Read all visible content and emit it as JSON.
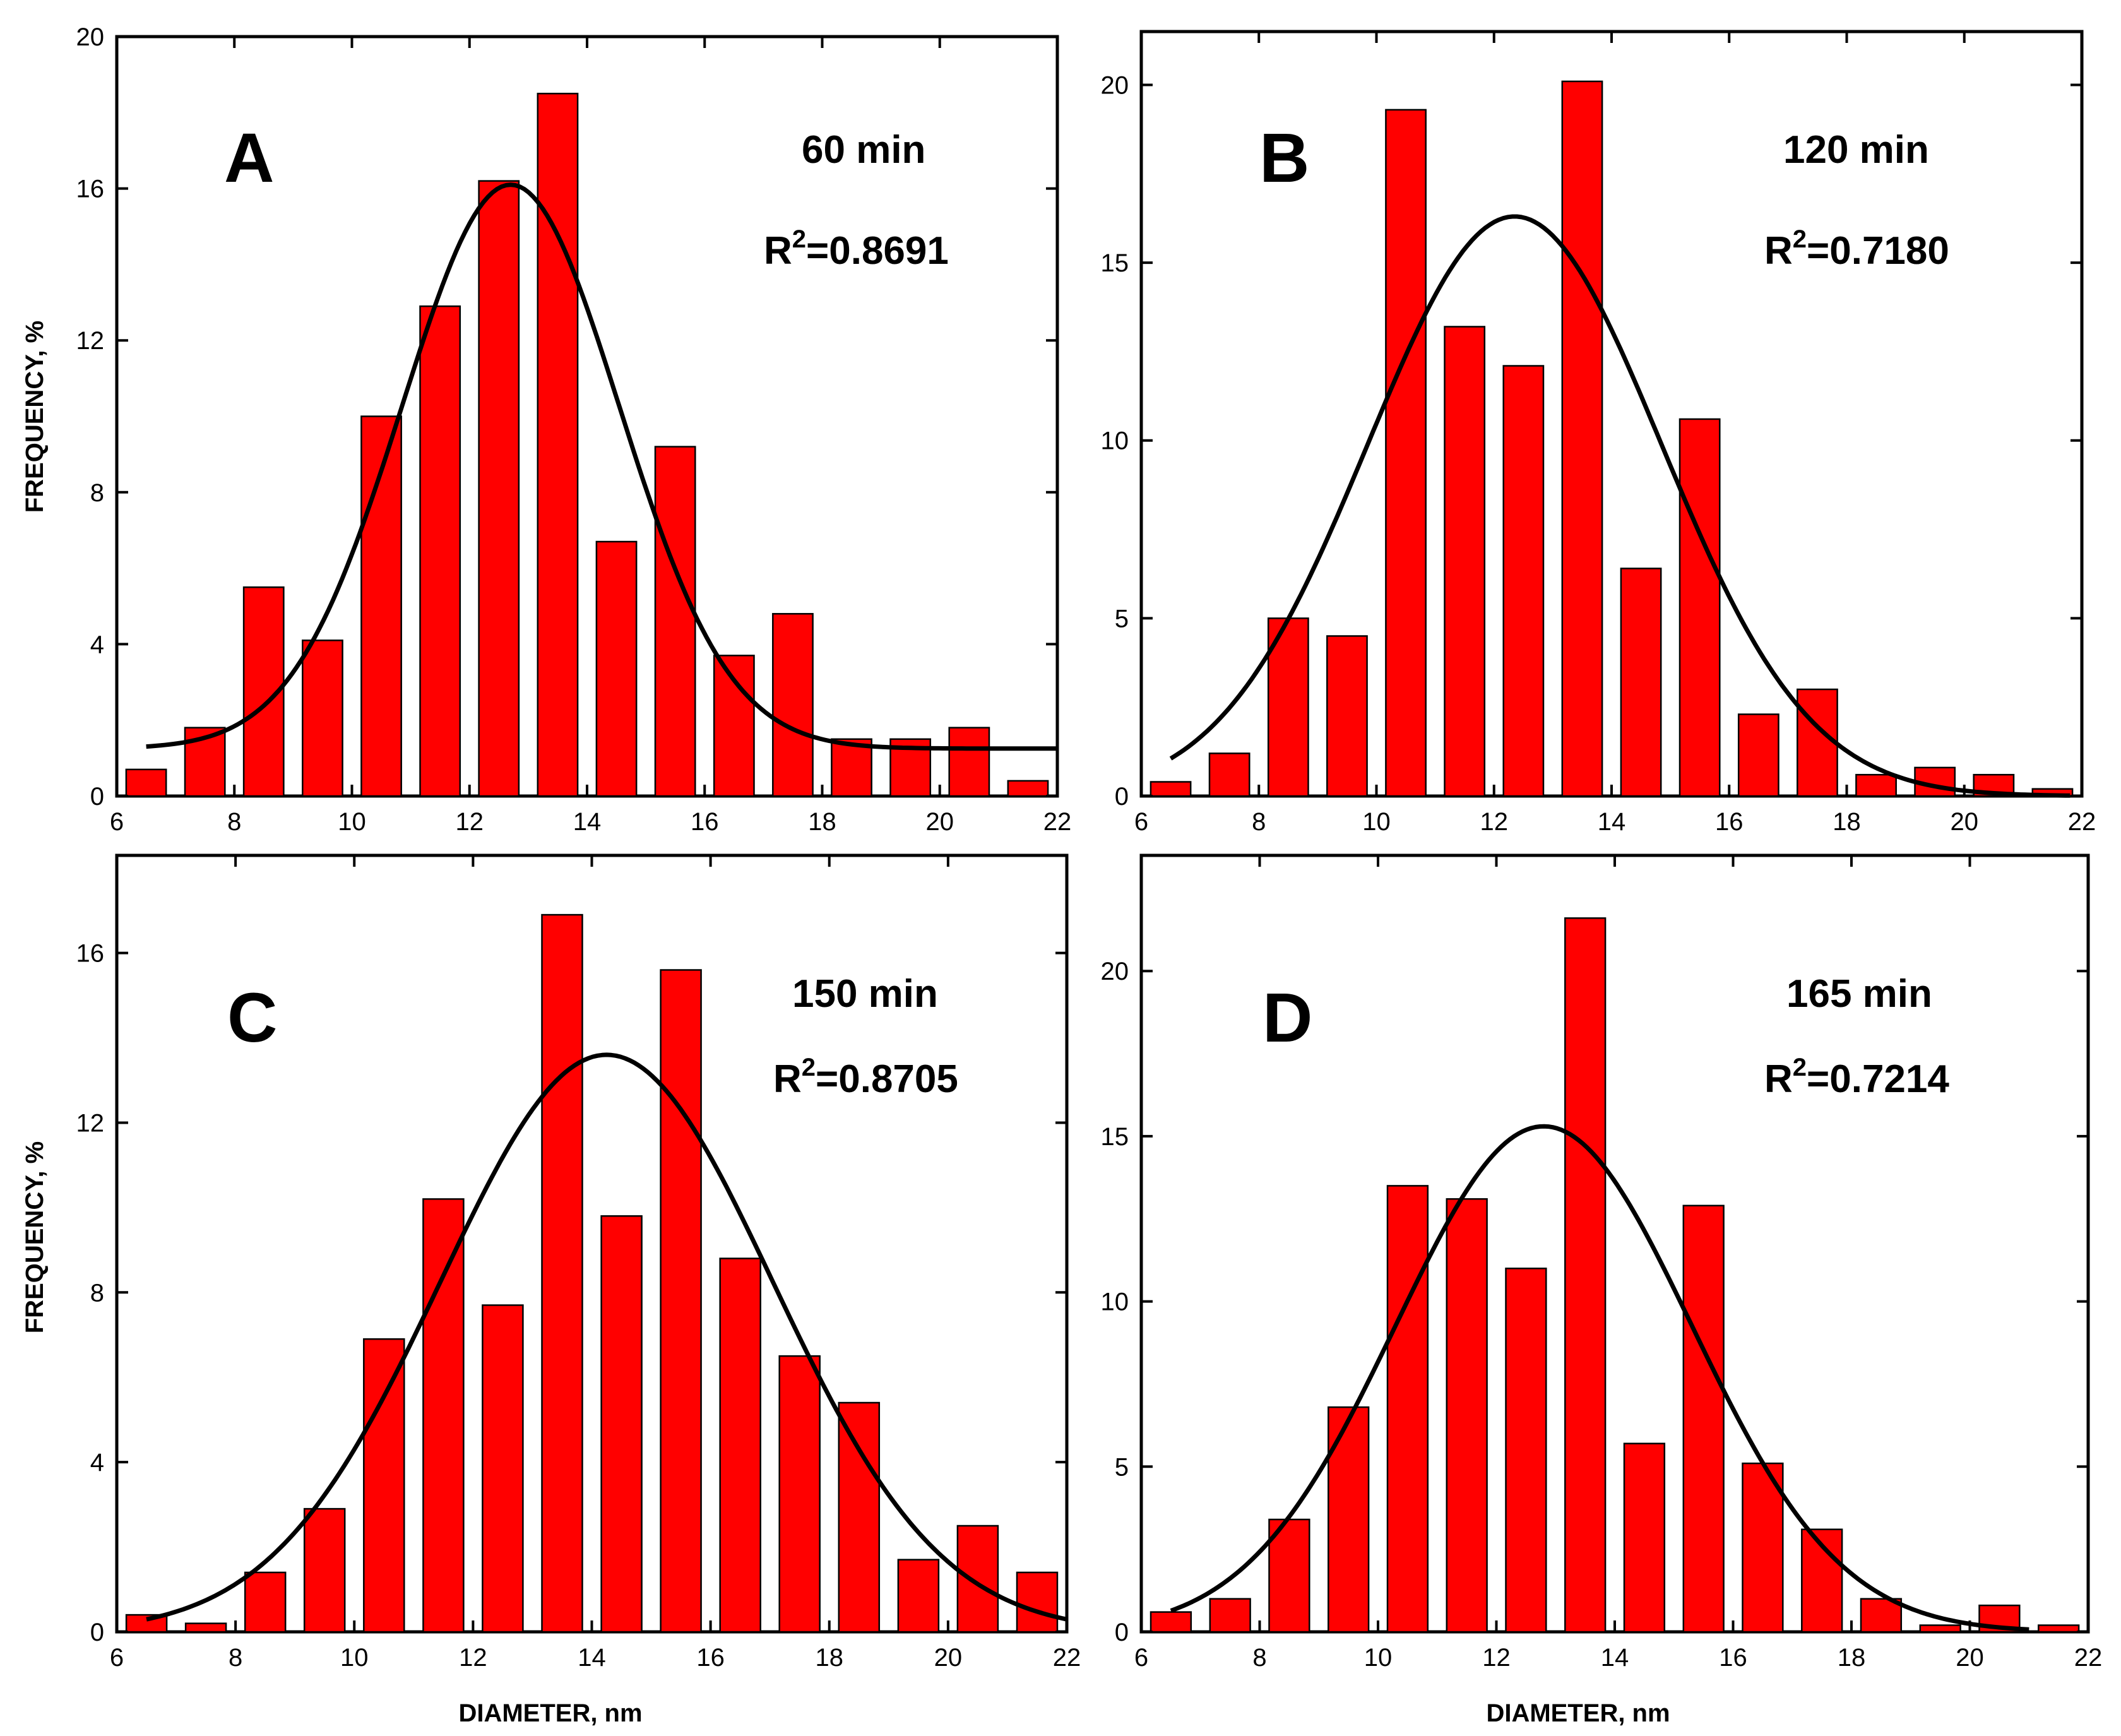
{
  "chart_data": [
    {
      "type": "bar",
      "panel": "A",
      "annotation": "60 min",
      "r2_label": "R",
      "r2_sup": "2",
      "r2_value": "=0.8691",
      "xlabel": "",
      "ylabel": "FREQUENCY, %",
      "xlim": [
        6,
        22
      ],
      "ylim": [
        0,
        20
      ],
      "xticks": [
        6,
        8,
        10,
        12,
        14,
        16,
        18,
        20,
        22
      ],
      "yticks": [
        0,
        4,
        8,
        12,
        16,
        20
      ],
      "bin_width": 1,
      "bins": [
        6.5,
        7.5,
        8.5,
        9.5,
        10.5,
        11.5,
        12.5,
        13.5,
        14.5,
        15.5,
        16.5,
        17.5,
        18.5,
        19.5,
        20.5,
        21.5
      ],
      "values": [
        0.7,
        1.8,
        5.5,
        4.1,
        10.0,
        12.9,
        16.2,
        18.5,
        6.7,
        9.2,
        3.7,
        4.8,
        1.5,
        1.5,
        1.8,
        0.4
      ],
      "fit": {
        "model": "gauss",
        "center": 12.7,
        "amplitude": 14.85,
        "sigma": 1.85,
        "offset": 1.25,
        "x_range": [
          6.5,
          22
        ]
      }
    },
    {
      "type": "bar",
      "panel": "B",
      "annotation": "120 min",
      "r2_label": "R",
      "r2_sup": "2",
      "r2_value": "=0.7180",
      "xlabel": "",
      "ylabel": "",
      "xlim": [
        6,
        22
      ],
      "ylim": [
        0,
        21.5
      ],
      "xticks": [
        6,
        8,
        10,
        12,
        14,
        16,
        18,
        20,
        22
      ],
      "yticks": [
        0,
        5,
        10,
        15,
        20
      ],
      "bin_width": 1,
      "bins": [
        6.5,
        7.5,
        8.5,
        9.5,
        10.5,
        11.5,
        12.5,
        13.5,
        14.5,
        15.5,
        16.5,
        17.5,
        18.5,
        19.5,
        20.5,
        21.5
      ],
      "values": [
        0.4,
        1.2,
        5.0,
        4.5,
        19.3,
        13.2,
        12.1,
        20.1,
        6.4,
        10.6,
        2.3,
        3.0,
        0.6,
        0.8,
        0.6,
        0.2
      ],
      "fit": {
        "model": "gauss",
        "center": 12.35,
        "amplitude": 16.3,
        "sigma": 2.5,
        "offset": 0,
        "x_range": [
          6.5,
          21.8
        ]
      }
    },
    {
      "type": "bar",
      "panel": "C",
      "annotation": "150 min",
      "r2_label": "R",
      "r2_sup": "2",
      "r2_value": "=0.8705",
      "xlabel": "DIAMETER, nm",
      "ylabel": "FREQUENCY, %",
      "xlim": [
        6,
        22
      ],
      "ylim": [
        0,
        18.3
      ],
      "xticks": [
        6,
        8,
        10,
        12,
        14,
        16,
        18,
        20,
        22
      ],
      "yticks": [
        0,
        4,
        8,
        12,
        16
      ],
      "bin_width": 1,
      "bins": [
        6.5,
        7.5,
        8.5,
        9.5,
        10.5,
        11.5,
        12.5,
        13.5,
        14.5,
        15.5,
        16.5,
        17.5,
        18.5,
        19.5,
        20.5,
        21.5
      ],
      "values": [
        0.4,
        0.2,
        1.4,
        2.9,
        6.9,
        10.2,
        7.7,
        16.9,
        9.8,
        15.6,
        8.8,
        6.5,
        5.4,
        1.7,
        2.5,
        1.4
      ],
      "fit": {
        "model": "gauss",
        "center": 14.25,
        "amplitude": 13.6,
        "sigma": 2.8,
        "offset": 0,
        "x_range": [
          6.5,
          22
        ]
      }
    },
    {
      "type": "bar",
      "panel": "D",
      "annotation": "165 min",
      "r2_label": "R",
      "r2_sup": "2",
      "r2_value": "=0.7214",
      "xlabel": "DIAMETER, nm",
      "ylabel": "",
      "xlim": [
        6,
        22
      ],
      "ylim": [
        0,
        23.5
      ],
      "xticks": [
        6,
        8,
        10,
        12,
        14,
        16,
        18,
        20,
        22
      ],
      "yticks": [
        0,
        5,
        10,
        15,
        20
      ],
      "bin_width": 1,
      "bins": [
        6.5,
        7.5,
        8.5,
        9.5,
        10.5,
        11.5,
        12.5,
        13.5,
        14.5,
        15.5,
        16.5,
        17.5,
        18.5,
        19.5,
        20.5,
        21.5
      ],
      "values": [
        0.6,
        1.0,
        3.4,
        6.8,
        13.5,
        13.1,
        11.0,
        21.6,
        5.7,
        12.9,
        5.1,
        3.1,
        1.0,
        0.2,
        0.8,
        0.2
      ],
      "fit": {
        "model": "gauss",
        "center": 12.8,
        "amplitude": 15.3,
        "sigma": 2.5,
        "offset": 0,
        "x_range": [
          6.5,
          21
        ]
      }
    }
  ]
}
